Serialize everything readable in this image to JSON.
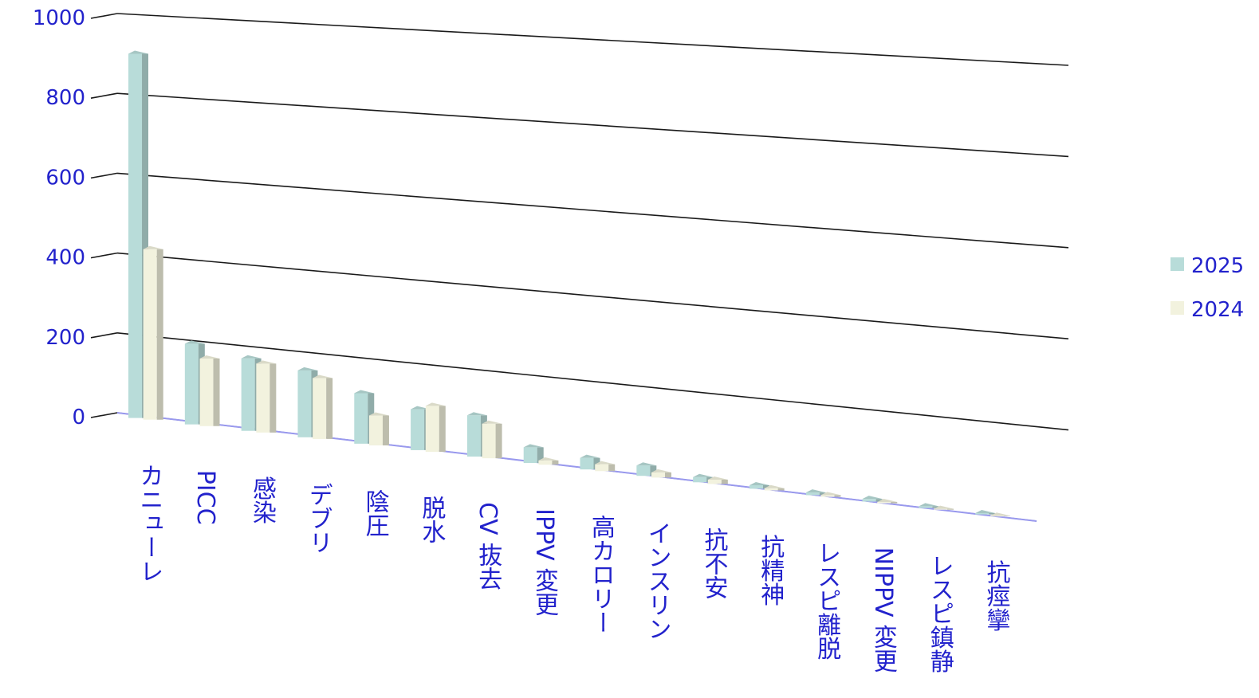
{
  "chart_data": {
    "type": "bar",
    "categories": [
      "カニューレ",
      "PICC",
      "感染",
      "デブリ",
      "陰圧",
      "脱水",
      "CV 抜去",
      "IPPV 変更",
      "高カロリー",
      "インスリン",
      "抗不安",
      "抗精神",
      "レスピ離脱",
      "NIPPV 変更",
      "レスピ鎮静",
      "抗痙攣"
    ],
    "series": [
      {
        "name": "2025",
        "color": "#b8dcd9",
        "values": [
          910,
          200,
          178,
          163,
          122,
          98,
          98,
          37,
          27,
          24,
          12,
          8,
          6,
          6,
          4,
          3
        ]
      },
      {
        "name": "2024",
        "color": "#f2f2de",
        "values": [
          425,
          167,
          169,
          148,
          72,
          110,
          82,
          10,
          16,
          12,
          10,
          5,
          4,
          3,
          2,
          1
        ]
      }
    ],
    "yticks": [
      "0",
      "200",
      "400",
      "600",
      "800",
      "1000"
    ],
    "ylim": [
      0,
      1000
    ],
    "legend_position": "right",
    "grid": true,
    "projection": "3d"
  }
}
